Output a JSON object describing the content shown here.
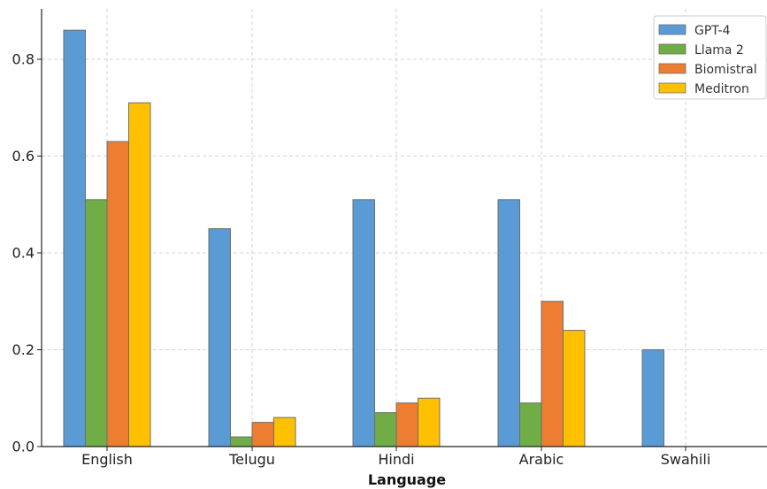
{
  "chart_data": {
    "type": "bar",
    "title": "",
    "xlabel": "Language",
    "ylabel": "",
    "categories": [
      "English",
      "Telugu",
      "Hindi",
      "Arabic",
      "Swahili"
    ],
    "series": [
      {
        "name": "GPT-4",
        "color": "#5b9bd5",
        "values": [
          0.86,
          0.45,
          0.51,
          0.51,
          0.2
        ]
      },
      {
        "name": "Llama 2",
        "color": "#70ad47",
        "values": [
          0.51,
          0.02,
          0.07,
          0.09,
          0.0
        ]
      },
      {
        "name": "Biomistral",
        "color": "#ed7d31",
        "values": [
          0.63,
          0.05,
          0.09,
          0.3,
          0.0
        ]
      },
      {
        "name": "Meditron",
        "color": "#ffc000",
        "values": [
          0.71,
          0.06,
          0.1,
          0.24,
          0.0
        ]
      }
    ],
    "ylim": [
      0,
      0.9
    ],
    "yticks": [
      "0.0",
      "0.2",
      "0.4",
      "0.6",
      "0.8"
    ],
    "grid": true,
    "legend_position": "top-right"
  }
}
